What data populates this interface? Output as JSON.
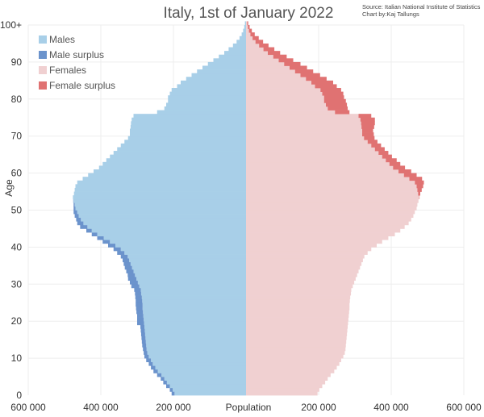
{
  "chart_data": {
    "type": "bar",
    "orientation": "horizontal-pyramid",
    "title": "Italy, 1st of January 2022",
    "source_lines": [
      "Source: Italian National Institute of Statistics",
      "Chart by:Kaj Tallungs"
    ],
    "xlabel": "Population",
    "ylabel": "Age",
    "xlim": [
      -600000,
      600000
    ],
    "x_ticks": [
      -600000,
      -400000,
      -200000,
      200000,
      400000,
      600000
    ],
    "x_tick_labels": [
      "600 000",
      "400 000",
      "200 000",
      "200 000",
      "400 000",
      "600 000"
    ],
    "y_ticks": [
      0,
      10,
      20,
      30,
      40,
      50,
      60,
      70,
      80,
      90,
      100
    ],
    "y_tick_labels": [
      "0",
      "10",
      "20",
      "30",
      "40",
      "50",
      "60",
      "70",
      "80",
      "90",
      "100+"
    ],
    "legend": {
      "placement": "top-left",
      "entries": [
        {
          "label": "Males",
          "color": "#a8cfe8"
        },
        {
          "label": "Male surplus",
          "color": "#6b93cc"
        },
        {
          "label": "Females",
          "color": "#f0d0d1"
        },
        {
          "label": "Female surplus",
          "color": "#e07272"
        }
      ]
    },
    "colors": {
      "males": "#a8cfe8",
      "male_surplus": "#6b93cc",
      "females": "#f0d0d1",
      "female_surplus": "#e07272"
    },
    "ages": [
      0,
      1,
      2,
      3,
      4,
      5,
      6,
      7,
      8,
      9,
      10,
      11,
      12,
      13,
      14,
      15,
      16,
      17,
      18,
      19,
      20,
      21,
      22,
      23,
      24,
      25,
      26,
      27,
      28,
      29,
      30,
      31,
      32,
      33,
      34,
      35,
      36,
      37,
      38,
      39,
      40,
      41,
      42,
      43,
      44,
      45,
      46,
      47,
      48,
      49,
      50,
      51,
      52,
      53,
      54,
      55,
      56,
      57,
      58,
      59,
      60,
      61,
      62,
      63,
      64,
      65,
      66,
      67,
      68,
      69,
      70,
      71,
      72,
      73,
      74,
      75,
      76,
      77,
      78,
      79,
      80,
      81,
      82,
      83,
      84,
      85,
      86,
      87,
      88,
      89,
      90,
      91,
      92,
      93,
      94,
      95,
      96,
      97,
      98,
      99,
      100
    ],
    "series": [
      {
        "name": "Males",
        "values": [
          205000,
          210000,
          220000,
          228000,
          235000,
          245000,
          255000,
          262000,
          268000,
          275000,
          280000,
          282000,
          284000,
          286000,
          287000,
          288000,
          289000,
          290000,
          291000,
          300000,
          300000,
          300000,
          302000,
          303000,
          304000,
          304000,
          305000,
          306000,
          308000,
          316000,
          320000,
          325000,
          326000,
          330000,
          334000,
          337000,
          340000,
          345000,
          355000,
          365000,
          380000,
          395000,
          410000,
          425000,
          440000,
          457000,
          465000,
          468000,
          472000,
          475000,
          475000,
          475000,
          476000,
          477000,
          474000,
          472000,
          470000,
          465000,
          450000,
          435000,
          420000,
          405000,
          395000,
          385000,
          375000,
          365000,
          355000,
          345000,
          335000,
          325000,
          320000,
          320000,
          318000,
          317000,
          315000,
          310000,
          245000,
          225000,
          220000,
          215000,
          215000,
          210000,
          205000,
          190000,
          180000,
          165000,
          150000,
          135000,
          120000,
          105000,
          90000,
          75000,
          60000,
          48000,
          36000,
          26000,
          18000,
          12000,
          8000,
          5000,
          3000
        ]
      },
      {
        "name": "Females",
        "values": [
          197000,
          202000,
          210000,
          218000,
          225000,
          233000,
          243000,
          250000,
          257000,
          262000,
          268000,
          272000,
          274000,
          275000,
          276000,
          277000,
          278000,
          279000,
          280000,
          281000,
          282000,
          283000,
          284000,
          285000,
          285000,
          286000,
          287000,
          289000,
          290000,
          294000,
          298000,
          302000,
          306000,
          310000,
          314000,
          318000,
          322000,
          326000,
          335000,
          345000,
          360000,
          375000,
          392000,
          410000,
          425000,
          437000,
          448000,
          455000,
          461000,
          465000,
          470000,
          472000,
          475000,
          478000,
          480000,
          484000,
          488000,
          490000,
          485000,
          470000,
          455000,
          438000,
          425000,
          415000,
          402000,
          392000,
          382000,
          372000,
          362000,
          354000,
          352000,
          350000,
          353000,
          355000,
          355000,
          345000,
          285000,
          280000,
          278000,
          275000,
          270000,
          268000,
          262000,
          250000,
          240000,
          222000,
          204000,
          185000,
          168000,
          150000,
          130000,
          112000,
          94000,
          78000,
          62000,
          47000,
          35000,
          24000,
          16000,
          10000,
          6000
        ]
      }
    ]
  }
}
